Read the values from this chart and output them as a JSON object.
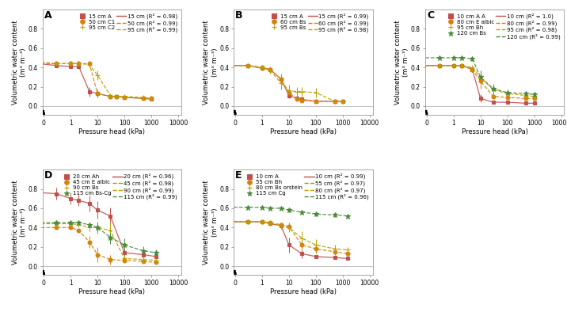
{
  "panels": [
    {
      "label": "A",
      "series": [
        {
          "name": "15 cm A",
          "legend_line": "15 cm (R² = 0.98)",
          "color": "#c0504d",
          "marker": "s",
          "markerface": true,
          "linestyle": "-",
          "x": [
            0.001,
            0.3,
            1,
            2,
            5,
            10,
            30,
            50,
            100,
            500,
            1000
          ],
          "y": [
            0.49,
            0.42,
            0.41,
            0.41,
            0.15,
            0.13,
            0.1,
            0.1,
            0.09,
            0.08,
            0.07
          ],
          "yerr": [
            0.01,
            0.02,
            0.02,
            0.02,
            0.05,
            0.04,
            0.01,
            0.01,
            0.01,
            0.01,
            0.01
          ]
        },
        {
          "name": "50 cm C1",
          "legend_line": "50 cm (R² = 0.99)",
          "color": "#d4820a",
          "marker": "o",
          "markerface": true,
          "linestyle": "--",
          "x": [
            0.001,
            0.3,
            1,
            2,
            5,
            10,
            30,
            50,
            100,
            500,
            1000
          ],
          "y": [
            0.5,
            0.44,
            0.44,
            0.44,
            0.44,
            0.13,
            0.1,
            0.1,
            0.09,
            0.08,
            0.08
          ],
          "yerr": [
            0.01,
            0.01,
            0.01,
            0.01,
            0.01,
            0.03,
            0.01,
            0.01,
            0.01,
            0.01,
            0.01
          ]
        },
        {
          "name": "95 cm C2",
          "legend_line": "95 cm (R² = 0.99)",
          "color": "#b8a000",
          "marker": "+",
          "markerface": false,
          "linestyle": "--",
          "x": [
            0.001,
            0.3,
            1,
            2,
            5,
            10,
            30,
            50,
            100,
            500,
            1000
          ],
          "y": [
            0.44,
            0.44,
            0.44,
            0.44,
            0.43,
            0.32,
            0.11,
            0.1,
            0.1,
            0.09,
            0.08
          ],
          "yerr": [
            0.01,
            0.01,
            0.01,
            0.01,
            0.01,
            0.05,
            0.01,
            0.01,
            0.01,
            0.01,
            0.01
          ]
        }
      ],
      "ylim": [
        -0.09,
        1.0
      ],
      "yticks": [
        0.0,
        0.2,
        0.4,
        0.6,
        0.8
      ]
    },
    {
      "label": "B",
      "series": [
        {
          "name": "15 cm A",
          "legend_line": "15 cm (R² = 0.99)",
          "color": "#c0504d",
          "marker": "s",
          "markerface": true,
          "linestyle": "-",
          "x": [
            0.001,
            0.3,
            1,
            2,
            5,
            10,
            20,
            30,
            100,
            500,
            1000
          ],
          "y": [
            0.42,
            0.42,
            0.39,
            0.38,
            0.28,
            0.11,
            0.08,
            0.07,
            0.05,
            0.05,
            0.05
          ],
          "yerr": [
            0.01,
            0.01,
            0.02,
            0.02,
            0.05,
            0.03,
            0.01,
            0.01,
            0.01,
            0.01,
            0.01
          ]
        },
        {
          "name": "60 cm Bs",
          "legend_line": "60 cm (R² = 0.99)",
          "color": "#d4820a",
          "marker": "o",
          "markerface": true,
          "linestyle": "--",
          "x": [
            0.001,
            0.3,
            1,
            2,
            5,
            10,
            20,
            30,
            100,
            500,
            1000
          ],
          "y": [
            0.42,
            0.42,
            0.4,
            0.38,
            0.28,
            0.14,
            0.07,
            0.06,
            0.05,
            0.05,
            0.05
          ],
          "yerr": [
            0.01,
            0.01,
            0.02,
            0.03,
            0.06,
            0.05,
            0.01,
            0.01,
            0.01,
            0.01,
            0.01
          ]
        },
        {
          "name": "95 cm Bs",
          "legend_line": "95 cm (R² = 0.98)",
          "color": "#b8a000",
          "marker": "+",
          "markerface": false,
          "linestyle": "--",
          "x": [
            0.001,
            0.3,
            1,
            2,
            5,
            10,
            20,
            30,
            100,
            500,
            1000
          ],
          "y": [
            0.42,
            0.42,
            0.4,
            0.37,
            0.24,
            0.16,
            0.15,
            0.15,
            0.14,
            0.05,
            0.05
          ],
          "yerr": [
            0.01,
            0.01,
            0.02,
            0.03,
            0.07,
            0.06,
            0.05,
            0.05,
            0.05,
            0.01,
            0.01
          ]
        }
      ],
      "ylim": [
        -0.09,
        1.0
      ],
      "yticks": [
        0.0,
        0.2,
        0.4,
        0.6,
        0.8
      ]
    },
    {
      "label": "C",
      "series": [
        {
          "name": "10 cm A A",
          "legend_line": "10 cm (R² = 1.0)",
          "color": "#c0504d",
          "marker": "s",
          "markerface": true,
          "linestyle": "-",
          "x": [
            0.001,
            0.3,
            1,
            2,
            5,
            10,
            30,
            100,
            500,
            1000
          ],
          "y": [
            0.42,
            0.42,
            0.42,
            0.42,
            0.38,
            0.08,
            0.04,
            0.04,
            0.03,
            0.03
          ],
          "yerr": [
            0.01,
            0.01,
            0.01,
            0.01,
            0.03,
            0.04,
            0.01,
            0.01,
            0.01,
            0.01
          ]
        },
        {
          "name": "80 cm E albic",
          "legend_line": "80 cm (R² = 0.99)",
          "color": "#d4820a",
          "marker": "o",
          "markerface": true,
          "linestyle": "--",
          "x": [
            0.001,
            0.3,
            1,
            2,
            5,
            10,
            30,
            100,
            500,
            1000
          ],
          "y": [
            0.42,
            0.42,
            0.42,
            0.42,
            0.38,
            0.26,
            0.1,
            0.09,
            0.08,
            0.08
          ],
          "yerr": [
            0.01,
            0.01,
            0.01,
            0.01,
            0.03,
            0.08,
            0.03,
            0.02,
            0.02,
            0.02
          ]
        },
        {
          "name": "95 cm Bh",
          "legend_line": "95 cm (R² = 0.98)",
          "color": "#b8a000",
          "marker": "+",
          "markerface": false,
          "linestyle": "--",
          "x": [
            0.001,
            0.3,
            1,
            2,
            5,
            10,
            30,
            100,
            500,
            1000
          ],
          "y": [
            0.42,
            0.42,
            0.42,
            0.42,
            0.4,
            0.3,
            0.17,
            0.13,
            0.11,
            0.1
          ],
          "yerr": [
            0.01,
            0.01,
            0.01,
            0.01,
            0.02,
            0.07,
            0.05,
            0.03,
            0.02,
            0.02
          ]
        },
        {
          "name": "120 cm Bs",
          "legend_line": "120 cm (R² = 0.99)",
          "color": "#4a8a3a",
          "marker": "*",
          "markerface": true,
          "linestyle": "--",
          "x": [
            0.001,
            0.3,
            1,
            2,
            5,
            10,
            30,
            100,
            500,
            1000
          ],
          "y": [
            0.5,
            0.5,
            0.5,
            0.5,
            0.49,
            0.3,
            0.18,
            0.14,
            0.13,
            0.12
          ],
          "yerr": [
            0.01,
            0.01,
            0.01,
            0.01,
            0.02,
            0.07,
            0.05,
            0.03,
            0.02,
            0.02
          ]
        }
      ],
      "ylim": [
        -0.09,
        1.0
      ],
      "yticks": [
        0.0,
        0.2,
        0.4,
        0.6,
        0.8
      ]
    },
    {
      "label": "D",
      "series": [
        {
          "name": "20 cm Ah",
          "legend_line": "20 cm (R² = 0.96)",
          "color": "#c0504d",
          "marker": "s",
          "markerface": true,
          "linestyle": "-",
          "x": [
            0.001,
            0.3,
            1,
            2,
            5,
            10,
            30,
            100,
            500,
            1500
          ],
          "y": [
            0.8,
            0.75,
            0.7,
            0.68,
            0.65,
            0.58,
            0.52,
            0.14,
            0.12,
            0.1
          ],
          "yerr": [
            0.02,
            0.06,
            0.06,
            0.06,
            0.08,
            0.09,
            0.09,
            0.04,
            0.03,
            0.03
          ]
        },
        {
          "name": "45 cm E albic",
          "legend_line": "45 cm (R² = 0.98)",
          "color": "#d4820a",
          "marker": "o",
          "markerface": true,
          "linestyle": "--",
          "x": [
            0.001,
            0.3,
            1,
            2,
            5,
            10,
            30,
            100,
            500,
            1500
          ],
          "y": [
            0.4,
            0.4,
            0.4,
            0.37,
            0.25,
            0.12,
            0.07,
            0.06,
            0.05,
            0.04
          ],
          "yerr": [
            0.01,
            0.01,
            0.01,
            0.02,
            0.06,
            0.08,
            0.05,
            0.01,
            0.01,
            0.01
          ]
        },
        {
          "name": "90 cm Bs",
          "legend_line": "90 cm (R² = 0.99)",
          "color": "#b8a000",
          "marker": "+",
          "markerface": false,
          "linestyle": "--",
          "x": [
            0.001,
            0.3,
            1,
            2,
            5,
            10,
            30,
            100,
            500,
            1500
          ],
          "y": [
            0.44,
            0.44,
            0.44,
            0.43,
            0.4,
            0.4,
            0.37,
            0.08,
            0.07,
            0.06
          ],
          "yerr": [
            0.01,
            0.01,
            0.01,
            0.01,
            0.04,
            0.06,
            0.09,
            0.02,
            0.01,
            0.01
          ]
        },
        {
          "name": "115 cm Bs-Cg",
          "legend_line": "115 cm (R² = 0.99)",
          "color": "#4a8a3a",
          "marker": "*",
          "markerface": true,
          "linestyle": "--",
          "x": [
            0.001,
            0.3,
            1,
            2,
            5,
            10,
            30,
            100,
            500,
            1500
          ],
          "y": [
            0.45,
            0.45,
            0.45,
            0.45,
            0.43,
            0.4,
            0.3,
            0.22,
            0.16,
            0.14
          ],
          "yerr": [
            0.01,
            0.01,
            0.01,
            0.01,
            0.02,
            0.05,
            0.07,
            0.07,
            0.05,
            0.03
          ]
        }
      ],
      "ylim": [
        -0.09,
        1.0
      ],
      "yticks": [
        0.0,
        0.2,
        0.4,
        0.6,
        0.8
      ]
    },
    {
      "label": "E",
      "series": [
        {
          "name": "10 cm A",
          "legend_line": "10 cm (R² = 0.99)",
          "color": "#c0504d",
          "marker": "s",
          "markerface": true,
          "linestyle": "-",
          "x": [
            0.001,
            0.3,
            1,
            2,
            5,
            10,
            30,
            100,
            500,
            1500
          ],
          "y": [
            0.46,
            0.46,
            0.46,
            0.44,
            0.42,
            0.22,
            0.13,
            0.1,
            0.09,
            0.08
          ],
          "yerr": [
            0.01,
            0.01,
            0.01,
            0.02,
            0.03,
            0.08,
            0.05,
            0.02,
            0.01,
            0.01
          ]
        },
        {
          "name": "55 cm Bh",
          "legend_line": "55 cm (R² = 0.97)",
          "color": "#d4820a",
          "marker": "o",
          "markerface": true,
          "linestyle": "--",
          "x": [
            0.001,
            0.3,
            1,
            2,
            5,
            10,
            30,
            100,
            500,
            1500
          ],
          "y": [
            0.46,
            0.46,
            0.46,
            0.45,
            0.43,
            0.41,
            0.22,
            0.18,
            0.15,
            0.13
          ],
          "yerr": [
            0.01,
            0.01,
            0.01,
            0.01,
            0.02,
            0.04,
            0.06,
            0.05,
            0.03,
            0.02
          ]
        },
        {
          "name": "80 cm Bs orstein",
          "legend_line": "80 cm (R² = 0.97)",
          "color": "#b8a000",
          "marker": "+",
          "markerface": false,
          "linestyle": "--",
          "x": [
            0.001,
            0.3,
            1,
            2,
            5,
            10,
            30,
            100,
            500,
            1500
          ],
          "y": [
            0.46,
            0.46,
            0.46,
            0.44,
            0.42,
            0.4,
            0.29,
            0.22,
            0.18,
            0.17
          ],
          "yerr": [
            0.01,
            0.01,
            0.01,
            0.02,
            0.03,
            0.05,
            0.07,
            0.06,
            0.04,
            0.02
          ]
        },
        {
          "name": "115 cm Cg",
          "legend_line": "115 cm (R² = 0.96)",
          "color": "#4a8a3a",
          "marker": "*",
          "markerface": true,
          "linestyle": "--",
          "x": [
            0.001,
            0.3,
            1,
            2,
            5,
            10,
            30,
            100,
            500,
            1500
          ],
          "y": [
            0.61,
            0.61,
            0.61,
            0.6,
            0.6,
            0.58,
            0.56,
            0.54,
            0.53,
            0.52
          ],
          "yerr": [
            0.01,
            0.01,
            0.01,
            0.01,
            0.01,
            0.02,
            0.02,
            0.02,
            0.02,
            0.02
          ]
        }
      ],
      "ylim": [
        -0.09,
        1.0
      ],
      "yticks": [
        0.0,
        0.2,
        0.4,
        0.6,
        0.8
      ]
    }
  ],
  "xlabel": "Pressure head (kPa)",
  "ylabel": "Volumetric water content\n(m³ m⁻³)",
  "background_color": "#ffffff"
}
